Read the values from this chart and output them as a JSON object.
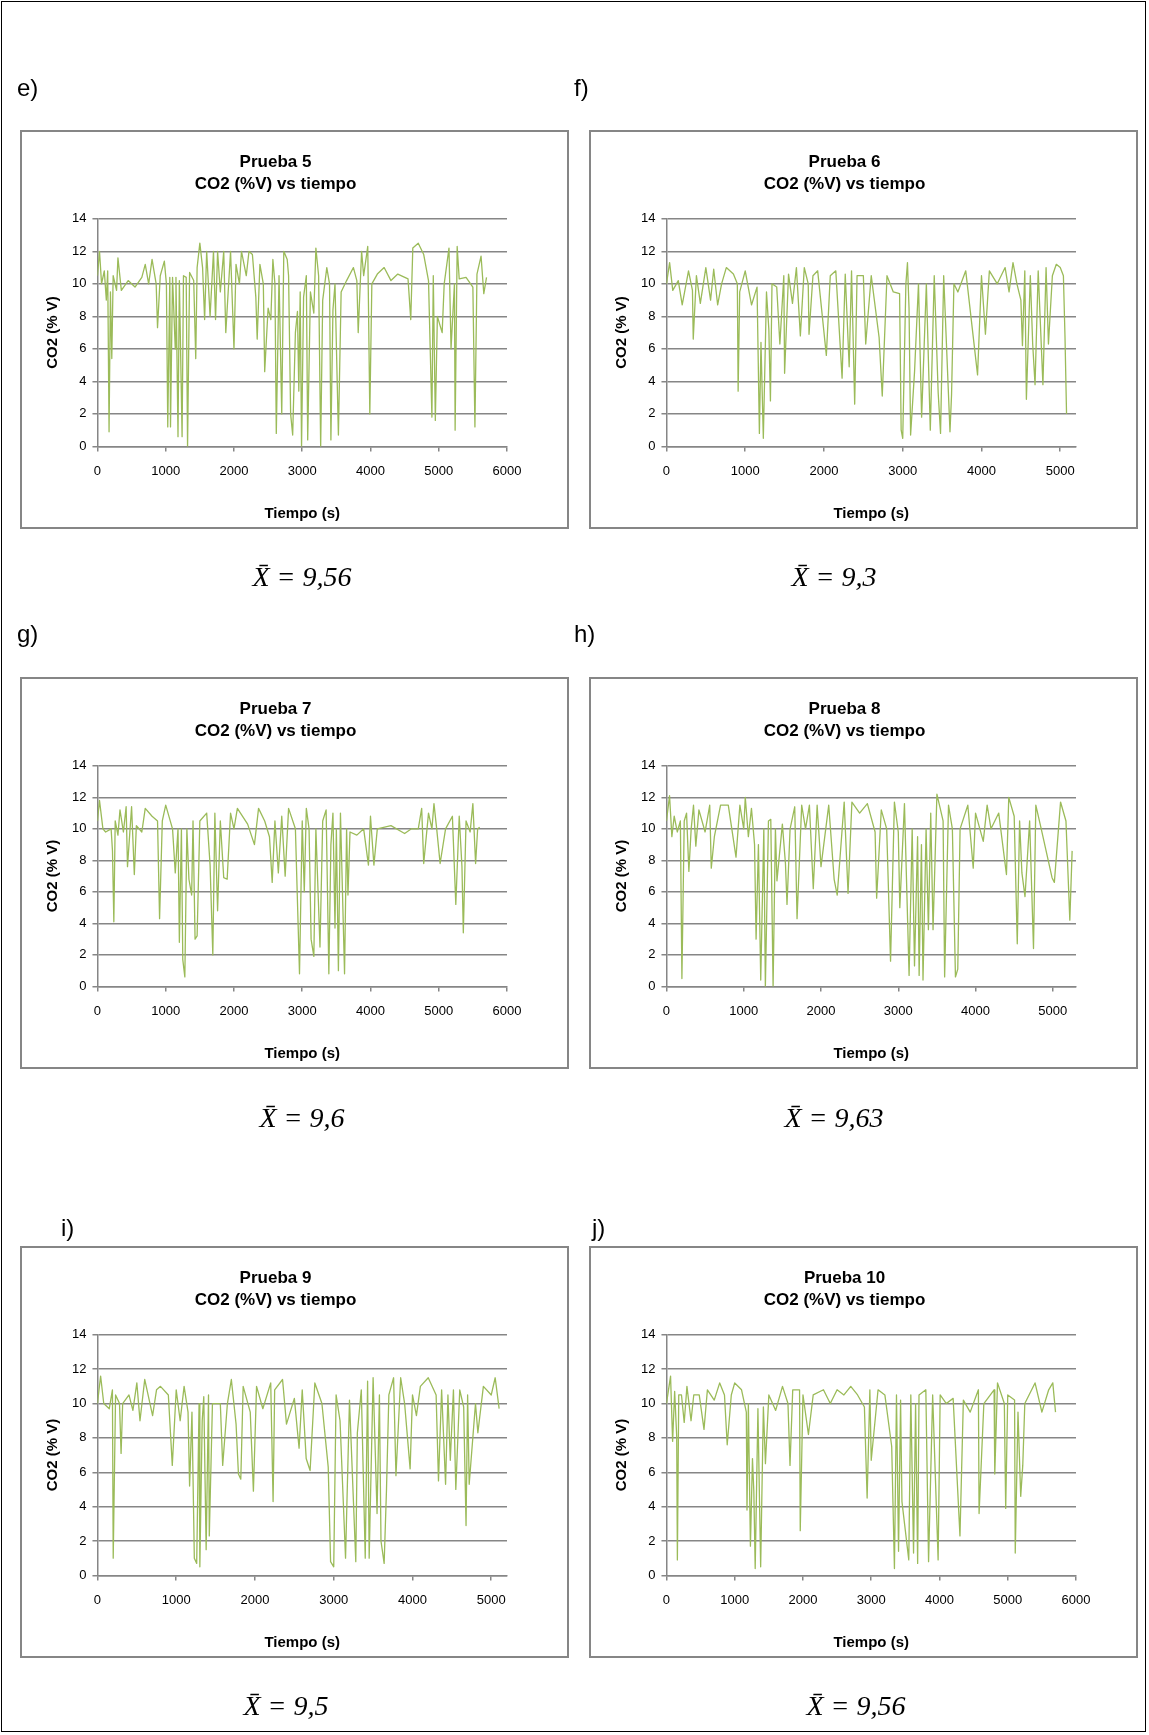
{
  "chart_data": [
    {
      "type": "line",
      "title": "Prueba 5",
      "subtitle": "CO2 (%V) vs tiempo",
      "xlabel": "Tiempo (s)",
      "ylabel": "CO2 (% V)",
      "annotations": [
        "e)",
        "X̄ = 9,56"
      ],
      "color": "#9bbb59",
      "marker": "none",
      "legend": false,
      "grid": "y",
      "xlim": [
        0,
        6000
      ],
      "xticks": [
        0,
        1000,
        2000,
        3000,
        4000,
        5000,
        6000
      ],
      "ylim": [
        0,
        14
      ],
      "yticks": [
        0,
        2,
        4,
        6,
        8,
        10,
        12,
        14
      ],
      "x": [
        0,
        30,
        60,
        100,
        130,
        150,
        170,
        190,
        210,
        230,
        280,
        300,
        350,
        450,
        550,
        650,
        700,
        750,
        800,
        860,
        880,
        920,
        980,
        1010,
        1030,
        1060,
        1070,
        1100,
        1140,
        1150,
        1180,
        1200,
        1240,
        1260,
        1300,
        1320,
        1350,
        1410,
        1440,
        1460,
        1500,
        1540,
        1570,
        1600,
        1650,
        1700,
        1730,
        1760,
        1800,
        1850,
        1880,
        1950,
        2000,
        2030,
        2080,
        2110,
        2180,
        2220,
        2270,
        2320,
        2340,
        2380,
        2430,
        2450,
        2500,
        2540,
        2570,
        2600,
        2620,
        2660,
        2700,
        2730,
        2780,
        2800,
        2830,
        2860,
        2900,
        2930,
        2950,
        2970,
        2990,
        3020,
        3060,
        3080,
        3120,
        3170,
        3200,
        3240,
        3270,
        3300,
        3360,
        3400,
        3420,
        3450,
        3480,
        3530,
        3570,
        3650,
        3750,
        3800,
        3820,
        3870,
        3900,
        3960,
        3990,
        4020,
        4100,
        4200,
        4300,
        4400,
        4550,
        4590,
        4620,
        4700,
        4780,
        4850,
        4900,
        4920,
        4950,
        4980,
        5050,
        5080,
        5150,
        5180,
        5230,
        5240,
        5270,
        5300,
        5400,
        5500,
        5530,
        5560,
        5620,
        5660,
        5700
      ],
      "values": [
        10.5,
        12,
        10,
        10.8,
        9,
        10.8,
        0.9,
        9.5,
        5.4,
        10.5,
        9.6,
        11.6,
        9.6,
        10.2,
        9.8,
        10.4,
        11.2,
        10,
        11.5,
        10,
        7.3,
        10.5,
        11.4,
        10,
        1.2,
        10.4,
        1.2,
        10.4,
        6,
        10.4,
        0.6,
        10.2,
        0.6,
        10.5,
        10.4,
        0,
        10.7,
        10.2,
        5.4,
        11,
        12.5,
        11,
        7.8,
        12,
        8,
        12,
        7.8,
        12,
        9.5,
        12,
        7,
        12,
        6,
        11.2,
        10,
        12,
        10.5,
        12,
        11.8,
        9.2,
        6.6,
        11.2,
        10,
        4.6,
        8.5,
        7.8,
        11.5,
        10,
        0.8,
        10.5,
        2,
        12,
        11.5,
        10.5,
        2,
        0.7,
        7,
        8.3,
        3.4,
        9.5,
        0,
        9.2,
        10.5,
        0.4,
        9.5,
        8.2,
        12.2,
        10.5,
        0,
        9,
        11,
        10,
        0.4,
        8.4,
        10,
        0.7,
        9.5,
        10.2,
        11,
        10.2,
        7,
        12,
        10.5,
        12.3,
        2,
        10,
        10.6,
        11,
        10.2,
        10.6,
        10.3,
        7.8,
        12.2,
        12.5,
        11.8,
        10.2,
        1.8,
        10.5,
        1.6,
        8,
        7,
        10,
        12.2,
        6,
        10,
        1,
        12.3,
        10.3,
        10.4,
        9.8,
        1.2,
        10.6,
        11.7,
        9.4,
        10.4
      ]
    },
    {
      "type": "line",
      "title": "Prueba 6",
      "subtitle": "CO2 (%V) vs tiempo",
      "xlabel": "Tiempo (s)",
      "ylabel": "CO2 (% V)",
      "annotations": [
        "f)",
        "X̄ = 9,3"
      ],
      "color": "#9bbb59",
      "marker": "none",
      "legend": false,
      "grid": "y",
      "xlim": [
        0,
        5200
      ],
      "xticks": [
        0,
        1000,
        2000,
        3000,
        4000,
        5000
      ],
      "ylim": [
        0,
        14
      ],
      "yticks": [
        0,
        2,
        4,
        6,
        8,
        10,
        12,
        14
      ],
      "x": [
        0,
        40,
        80,
        150,
        200,
        280,
        330,
        340,
        380,
        430,
        500,
        560,
        600,
        650,
        700,
        760,
        850,
        900,
        910,
        930,
        1000,
        1080,
        1150,
        1180,
        1200,
        1230,
        1270,
        1300,
        1320,
        1340,
        1400,
        1440,
        1490,
        1500,
        1550,
        1600,
        1650,
        1700,
        1750,
        1800,
        1810,
        1860,
        1920,
        2030,
        2080,
        2150,
        2230,
        2270,
        2320,
        2350,
        2390,
        2420,
        2500,
        2530,
        2600,
        2700,
        2740,
        2800,
        2880,
        2960,
        2980,
        3000,
        3040,
        3060,
        3080,
        3100,
        3150,
        3200,
        3240,
        3300,
        3330,
        3350,
        3400,
        3450,
        3480,
        3520,
        3600,
        3620,
        3650,
        3700,
        3800,
        3950,
        4000,
        4050,
        4100,
        4200,
        4300,
        4350,
        4400,
        4450,
        4500,
        4520,
        4550,
        4570,
        4620,
        4650,
        4680,
        4720,
        4780,
        4820,
        4850,
        4900,
        4950,
        5000,
        5040,
        5060,
        5080
      ],
      "values": [
        10,
        11.3,
        9.6,
        10.2,
        8.7,
        10.8,
        9.6,
        6.6,
        10.5,
        8.8,
        11,
        9,
        10.9,
        8.7,
        10,
        11,
        10.6,
        10,
        3.4,
        9.5,
        10.8,
        8.7,
        9.8,
        0.8,
        6.4,
        0.5,
        9.5,
        7.2,
        2.8,
        10,
        9.8,
        6.3,
        10.5,
        4.5,
        10.6,
        8.8,
        11,
        6.8,
        11,
        10,
        6.9,
        10.5,
        10.8,
        5.6,
        10.5,
        10.8,
        4.2,
        10.6,
        4.9,
        10.8,
        2.6,
        10.5,
        10.5,
        6.3,
        10.5,
        6.7,
        3.1,
        10.5,
        9.5,
        9.4,
        1,
        0.5,
        10,
        11.3,
        8.5,
        0.7,
        4.6,
        10,
        1.8,
        10,
        4.6,
        1,
        10.5,
        3.3,
        0.8,
        10.5,
        0.9,
        3.2,
        10,
        9.5,
        10.8,
        4.4,
        10.5,
        6.9,
        10.8,
        10,
        11,
        9.5,
        11.3,
        10,
        9,
        6.2,
        10.8,
        2.9,
        10.5,
        6.3,
        3.8,
        10.8,
        3.8,
        11,
        6.3,
        10.5,
        11.2,
        11,
        10.5,
        6.8,
        2
      ]
    },
    {
      "type": "line",
      "title": "Prueba 7",
      "subtitle": "CO2 (%V) vs tiempo",
      "xlabel": "Tiempo (s)",
      "ylabel": "CO2 (% V)",
      "annotations": [
        "g)",
        "X̄ = 9,6"
      ],
      "color": "#9bbb59",
      "marker": "none",
      "legend": false,
      "grid": "y",
      "xlim": [
        0,
        6000
      ],
      "xticks": [
        0,
        1000,
        2000,
        3000,
        4000,
        5000,
        6000
      ],
      "ylim": [
        0,
        14
      ],
      "yticks": [
        0,
        2,
        4,
        6,
        8,
        10,
        12,
        14
      ],
      "x": [
        0,
        30,
        80,
        120,
        200,
        220,
        240,
        260,
        300,
        330,
        380,
        420,
        440,
        500,
        540,
        570,
        650,
        700,
        800,
        880,
        910,
        950,
        1000,
        1100,
        1140,
        1180,
        1200,
        1230,
        1250,
        1280,
        1310,
        1340,
        1380,
        1400,
        1430,
        1460,
        1500,
        1600,
        1650,
        1690,
        1720,
        1760,
        1800,
        1850,
        1900,
        1950,
        2000,
        2050,
        2200,
        2300,
        2360,
        2450,
        2520,
        2560,
        2600,
        2650,
        2700,
        2750,
        2800,
        2900,
        2960,
        3000,
        3030,
        3060,
        3100,
        3130,
        3170,
        3200,
        3260,
        3300,
        3350,
        3390,
        3420,
        3450,
        3480,
        3500,
        3530,
        3560,
        3620,
        3650,
        3670,
        3700,
        3800,
        3900,
        3970,
        4000,
        4050,
        4100,
        4300,
        4500,
        4600,
        4700,
        4750,
        4780,
        4850,
        4900,
        4930,
        4970,
        5020,
        5100,
        5200,
        5250,
        5300,
        5340,
        5360,
        5400,
        5460,
        5500,
        5540,
        5570,
        5600
      ],
      "values": [
        10.5,
        11.8,
        10,
        9.8,
        10,
        8.6,
        4.1,
        10.5,
        9.6,
        11.2,
        9.8,
        11.4,
        7.6,
        11.4,
        7.1,
        10.2,
        9.8,
        11.3,
        10.8,
        10.5,
        4.3,
        10.5,
        11.5,
        10,
        7.2,
        10,
        2.8,
        10,
        1.7,
        0.6,
        10,
        6.8,
        5.8,
        10.5,
        3,
        3.2,
        10.5,
        11,
        7.7,
        2,
        11,
        4.8,
        10.5,
        6.9,
        6.8,
        11,
        10,
        11.3,
        10.3,
        9,
        11.3,
        10.5,
        9.5,
        6.6,
        10.5,
        7.2,
        10.8,
        7,
        11.3,
        10,
        0.8,
        10.5,
        6,
        11.3,
        10,
        3,
        1.9,
        10,
        2.5,
        10.5,
        11.2,
        0.8,
        9,
        11,
        3.7,
        10,
        1,
        11,
        0.8,
        10,
        5.8,
        9.8,
        9.6,
        10,
        7.7,
        10.8,
        7.7,
        10,
        10.2,
        9.7,
        10,
        10,
        11.3,
        7.8,
        11,
        10,
        11.6,
        10,
        7.8,
        10,
        10.8,
        5.2,
        10.8,
        7.6,
        3.4,
        10.5,
        9.8,
        11.6,
        7.8,
        10,
        10.1
      ]
    },
    {
      "type": "line",
      "title": "Prueba 8",
      "subtitle": "CO2 (%V) vs tiempo",
      "xlabel": "Tiempo (s)",
      "ylabel": "CO2 (% V)",
      "annotations": [
        "h)",
        "X̄ = 9,63"
      ],
      "color": "#9bbb59",
      "marker": "none",
      "legend": false,
      "grid": "y",
      "xlim": [
        0,
        5300
      ],
      "xticks": [
        0,
        1000,
        2000,
        3000,
        4000,
        5000
      ],
      "ylim": [
        0,
        14
      ],
      "yticks": [
        0,
        2,
        4,
        6,
        8,
        10,
        12,
        14
      ],
      "x": [
        0,
        40,
        70,
        100,
        140,
        180,
        200,
        230,
        260,
        290,
        320,
        350,
        380,
        420,
        500,
        560,
        580,
        620,
        700,
        800,
        900,
        950,
        1000,
        1020,
        1060,
        1100,
        1140,
        1160,
        1190,
        1220,
        1260,
        1280,
        1320,
        1350,
        1380,
        1410,
        1430,
        1500,
        1540,
        1560,
        1600,
        1660,
        1690,
        1750,
        1800,
        1850,
        1900,
        1950,
        2000,
        2100,
        2170,
        2210,
        2300,
        2350,
        2400,
        2500,
        2600,
        2700,
        2720,
        2780,
        2850,
        2900,
        2950,
        3000,
        3020,
        3080,
        3140,
        3180,
        3210,
        3250,
        3270,
        3300,
        3320,
        3360,
        3390,
        3420,
        3450,
        3500,
        3580,
        3600,
        3650,
        3700,
        3740,
        3770,
        3800,
        3900,
        3970,
        4000,
        4100,
        4150,
        4200,
        4300,
        4400,
        4430,
        4500,
        4540,
        4570,
        4600,
        4640,
        4700,
        4750,
        4780,
        4850,
        4990,
        5020,
        5100,
        5170,
        5220,
        5250
      ],
      "values": [
        10.5,
        12.1,
        9.5,
        10.8,
        9.8,
        10.5,
        0.5,
        10.5,
        11,
        7.3,
        10,
        11.5,
        8.9,
        11.2,
        9.8,
        11.5,
        7.5,
        9.5,
        11.5,
        11.5,
        8.2,
        11.5,
        10,
        12,
        9.5,
        11.3,
        9,
        3,
        9,
        0.4,
        10,
        0,
        10.5,
        10.6,
        0,
        10,
        6.7,
        10.3,
        7.8,
        5.2,
        10,
        11.4,
        4.3,
        11.5,
        10,
        11.5,
        6.2,
        11.5,
        7.6,
        11.5,
        6.8,
        5.8,
        11.7,
        5.9,
        11.7,
        11,
        11.6,
        9.8,
        5.6,
        11.2,
        10,
        1.6,
        11.7,
        9.8,
        5,
        11.6,
        0.7,
        10,
        1.3,
        9.5,
        0.7,
        9,
        0.4,
        10,
        3.6,
        11,
        3.6,
        12.2,
        10.5,
        0.6,
        11.5,
        10,
        0.6,
        1.1,
        10,
        11.5,
        7.5,
        11,
        9.2,
        11.5,
        10,
        11,
        7.1,
        12,
        10.8,
        2.7,
        10.5,
        7.2,
        5.7,
        10.5,
        2.4,
        11.5,
        10,
        6.9,
        6.6,
        11.7,
        10.5,
        4.2,
        8.6
      ]
    },
    {
      "type": "line",
      "title": "Prueba 9",
      "subtitle": "CO2 (%V) vs tiempo",
      "xlabel": "Tiempo (s)",
      "ylabel": "CO2 (% V)",
      "annotations": [
        "i)",
        "X̄ = 9,5"
      ],
      "color": "#9bbb59",
      "marker": "none",
      "legend": false,
      "grid": "y",
      "xlim": [
        0,
        5200
      ],
      "xticks": [
        0,
        1000,
        2000,
        3000,
        4000,
        5000
      ],
      "ylim": [
        0,
        14
      ],
      "yticks": [
        0,
        2,
        4,
        6,
        8,
        10,
        12,
        14
      ],
      "x": [
        0,
        40,
        80,
        150,
        190,
        200,
        230,
        280,
        300,
        320,
        400,
        450,
        500,
        540,
        600,
        700,
        750,
        800,
        900,
        950,
        1000,
        1050,
        1100,
        1150,
        1170,
        1200,
        1230,
        1260,
        1290,
        1300,
        1330,
        1350,
        1380,
        1410,
        1420,
        1460,
        1560,
        1590,
        1650,
        1700,
        1760,
        1790,
        1820,
        1850,
        1940,
        1980,
        2020,
        2100,
        2200,
        2230,
        2250,
        2350,
        2400,
        2500,
        2560,
        2600,
        2650,
        2700,
        2760,
        2850,
        2930,
        2960,
        3000,
        3030,
        3080,
        3150,
        3200,
        3280,
        3300,
        3350,
        3400,
        3430,
        3450,
        3500,
        3550,
        3580,
        3600,
        3640,
        3670,
        3700,
        3760,
        3790,
        3850,
        3900,
        3970,
        4000,
        4050,
        4100,
        4200,
        4300,
        4330,
        4370,
        4420,
        4450,
        4480,
        4520,
        4550,
        4600,
        4650,
        4680,
        4700,
        4720,
        4800,
        4830,
        4900,
        5000,
        5050,
        5100
      ],
      "values": [
        10,
        11.6,
        10,
        9.7,
        10.8,
        1,
        10.5,
        10,
        7.1,
        10,
        10.5,
        9.6,
        11.2,
        9,
        11.4,
        9.3,
        10.8,
        11,
        10.5,
        6.4,
        10.8,
        9,
        11,
        9.5,
        5.2,
        9.5,
        1,
        0.7,
        10,
        0.5,
        9,
        10.4,
        1.5,
        10.5,
        2.3,
        10,
        10,
        6.4,
        10,
        11.4,
        8.8,
        5.9,
        5.6,
        11,
        9.5,
        4.9,
        11,
        9.7,
        11.2,
        4.3,
        10.8,
        11.4,
        8.8,
        10.3,
        7.4,
        10.8,
        6.8,
        6.1,
        11.2,
        10,
        6.3,
        0.8,
        0.5,
        10.5,
        9,
        1,
        10.2,
        0.8,
        8.3,
        10.8,
        1,
        11.3,
        1,
        11.5,
        3.6,
        10.5,
        2,
        0.7,
        5,
        10.5,
        11.5,
        5.8,
        11.5,
        10,
        6.2,
        10.5,
        9.3,
        11,
        11.5,
        10.5,
        5.5,
        10.8,
        5.3,
        10.5,
        6.7,
        10.8,
        5,
        10.8,
        9.8,
        2.9,
        10.5,
        5.3,
        10,
        8.3,
        11,
        10.5,
        11.5,
        9.7
      ]
    },
    {
      "type": "line",
      "title": "Prueba 10",
      "subtitle": "CO2 (%V) vs tiempo",
      "xlabel": "Tiempo (s)",
      "ylabel": "CO2 (% V)",
      "annotations": [
        "j)",
        "X̄ = 9,56"
      ],
      "color": "#9bbb59",
      "marker": "none",
      "legend": false,
      "grid": "y",
      "xlim": [
        0,
        6000
      ],
      "xticks": [
        0,
        1000,
        2000,
        3000,
        4000,
        5000,
        6000
      ],
      "ylim": [
        0,
        14
      ],
      "yticks": [
        0,
        2,
        4,
        6,
        8,
        10,
        12,
        14
      ],
      "x": [
        0,
        60,
        90,
        120,
        150,
        160,
        180,
        220,
        260,
        300,
        360,
        400,
        480,
        550,
        600,
        700,
        780,
        850,
        890,
        950,
        1000,
        1100,
        1170,
        1180,
        1200,
        1230,
        1260,
        1280,
        1300,
        1340,
        1380,
        1420,
        1450,
        1500,
        1600,
        1700,
        1780,
        1810,
        1850,
        1950,
        1960,
        2000,
        2080,
        2150,
        2300,
        2400,
        2500,
        2600,
        2700,
        2800,
        2900,
        2940,
        2980,
        3000,
        3100,
        3200,
        3300,
        3340,
        3370,
        3400,
        3430,
        3450,
        3550,
        3580,
        3620,
        3650,
        3680,
        3700,
        3800,
        3840,
        3900,
        3980,
        4010,
        4100,
        4200,
        4300,
        4350,
        4450,
        4570,
        4580,
        4650,
        4800,
        4810,
        4850,
        4950,
        4970,
        5000,
        5100,
        5110,
        5150,
        5190,
        5220,
        5250,
        5400,
        5500,
        5600,
        5660,
        5700
      ],
      "values": [
        10,
        11.6,
        7.8,
        10.7,
        8.1,
        0.9,
        10.5,
        10.5,
        8.9,
        11,
        9,
        10.5,
        10.5,
        8.5,
        10.8,
        10.2,
        11.2,
        10.5,
        7.6,
        10.5,
        11.2,
        10.8,
        9.5,
        3.8,
        10,
        1.7,
        6.8,
        4.9,
        0.4,
        9.7,
        0.5,
        9.8,
        6.5,
        10.5,
        9.6,
        11,
        10,
        6.4,
        10.8,
        10.8,
        2.6,
        10.5,
        8.2,
        10.5,
        10.8,
        10,
        10.8,
        10.5,
        11,
        10.5,
        9.8,
        4.5,
        10.8,
        6.7,
        10.8,
        10.5,
        7.5,
        0.4,
        10.5,
        1.4,
        10.2,
        4.3,
        0.9,
        10.5,
        1.3,
        10,
        0.7,
        10.5,
        10.8,
        0.8,
        10.5,
        0.9,
        10.5,
        10,
        10.3,
        2.3,
        10.2,
        9.5,
        10.8,
        3.6,
        10,
        10.8,
        5.9,
        11.2,
        10,
        3.9,
        10.5,
        10.2,
        1.3,
        9.5,
        4.6,
        6.4,
        10,
        11.2,
        9.5,
        10.8,
        11.2,
        9.5
      ]
    }
  ]
}
